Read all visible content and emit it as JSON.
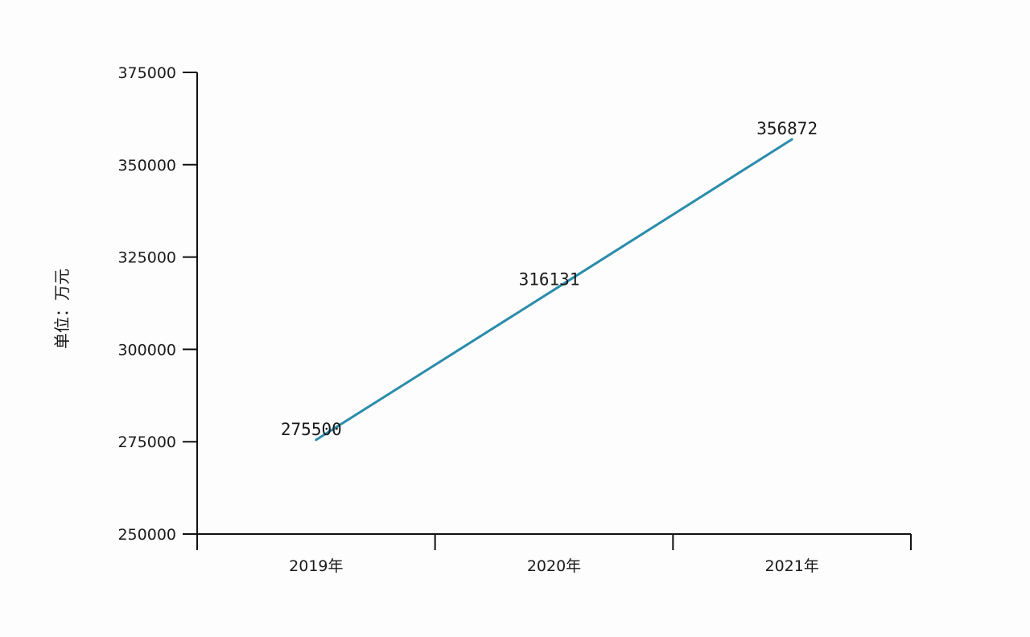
{
  "chart_data": {
    "type": "line",
    "categories": [
      "2019年",
      "2020年",
      "2021年"
    ],
    "series": [
      {
        "values": [
          275500,
          316131,
          356872
        ],
        "color": "#2a8cab"
      }
    ],
    "data_labels": [
      "275500",
      "316131",
      "356872"
    ],
    "ylabel": "单位：万元",
    "xlabel": "",
    "title": "",
    "ylim": [
      250000,
      375000
    ],
    "yticks": [
      250000,
      275000,
      300000,
      325000,
      350000,
      375000
    ],
    "ytick_labels": [
      "250000",
      "275000",
      "300000",
      "325000",
      "350000",
      "375000"
    ],
    "grid": false,
    "legend": "none"
  }
}
